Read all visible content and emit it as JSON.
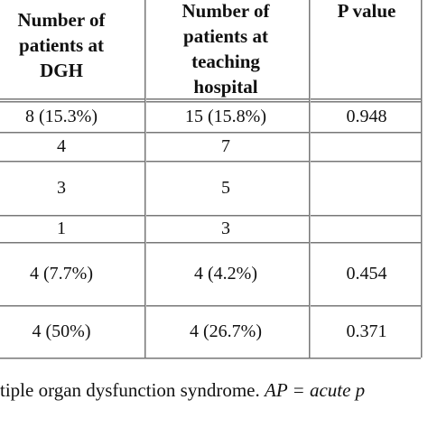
{
  "table": {
    "header": [
      [
        "Number of",
        "patients at",
        "DGH"
      ],
      [
        "Number of",
        "patients at",
        "teaching",
        "hospital"
      ],
      [
        "P value"
      ]
    ],
    "rows": [
      [
        "8 (15.3%)",
        "15 (15.8%)",
        "0.948"
      ],
      [
        "4",
        "7"
      ],
      [
        "3",
        "5"
      ],
      [
        "1",
        "3"
      ],
      [
        "4 (7.7%)",
        "4 (4.2%)",
        "0.454"
      ],
      [
        "4 (50%)",
        "4 (26.7%)",
        "0.371"
      ]
    ]
  },
  "caption": {
    "text": "tiple organ dysfunction syndrome. ",
    "italic": "AP = acute p"
  }
}
